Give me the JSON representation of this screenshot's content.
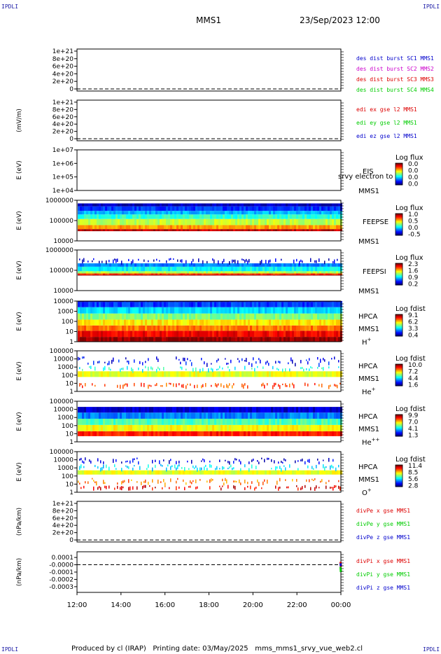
{
  "corners": {
    "tl": "IPDLI",
    "tr": "IPDLI",
    "bl": "IPDLI",
    "br": "IPDLI"
  },
  "header": {
    "spacecraft": "MMS1",
    "datetime": "23/Sep/2023 12:00"
  },
  "footer": {
    "produced": "Produced by cl (IRAP)",
    "printing": "Printing date: 03/May/2025",
    "file": "mms_mms1_srvy_vue_web2.cl"
  },
  "colors": {
    "black": "#000000",
    "blue": "#0000cc",
    "magenta": "#cc00cc",
    "red": "#dd0000",
    "green": "#00cc00"
  },
  "chart_data": [
    {
      "type": "line",
      "id": "des_dist",
      "ylabel": "",
      "ylim": [
        0,
        1e+21
      ],
      "yticks": [
        "1e+21",
        "8e+20",
        "6e+20",
        "4e+20",
        "2e+20",
        "0"
      ],
      "legend": [
        {
          "name": "des dist burst SC1 MMS1",
          "color": "#0000cc"
        },
        {
          "name": "des dist burst SC2 MMS2",
          "color": "#cc00cc"
        },
        {
          "name": "des dist burst SC3 MMS3",
          "color": "#dd0000"
        },
        {
          "name": "des dist burst SC4 MMS4",
          "color": "#00cc00"
        }
      ],
      "series": [],
      "zero_line": true
    },
    {
      "type": "line",
      "id": "edi",
      "ylabel": "(mV/m)",
      "ylim": [
        0,
        1e+21
      ],
      "yticks": [
        "1e+21",
        "8e+20",
        "6e+20",
        "4e+20",
        "2e+20",
        "0"
      ],
      "legend": [
        {
          "name": "edi ex gse l2 MMS1",
          "color": "#dd0000"
        },
        {
          "name": "edi ey gse l2 MMS1",
          "color": "#00cc00"
        },
        {
          "name": "edi ez gse l2 MMS1",
          "color": "#0000cc"
        }
      ],
      "series": [],
      "zero_line": true
    },
    {
      "type": "heatmap",
      "id": "eis",
      "ylabel": "E (eV)",
      "yscale": "log",
      "yticks": [
        "1e+07",
        "1e+06",
        "1e+05",
        "1e+04"
      ],
      "instrument": [
        "EIS",
        "MMS1"
      ],
      "overlay_text": "srvy electron to",
      "colorbar": {
        "label": "Log flux",
        "ticks": [
          "0.0",
          "0.0",
          "0.0",
          "0.0"
        ]
      },
      "spectrum": []
    },
    {
      "type": "heatmap",
      "id": "feeps_e",
      "ylabel": "E (eV)",
      "yscale": "log",
      "yticks": [
        "1000000",
        "100000",
        "10000"
      ],
      "instrument": [
        "FEEPSE",
        "MMS1"
      ],
      "colorbar": {
        "label": "Log flux",
        "ticks": [
          "1.0",
          "0.5",
          "0.0",
          "-0.5"
        ]
      },
      "spectrum": [
        {
          "e_min": 30000,
          "e_max": 38000,
          "level": 0.94
        },
        {
          "e_min": 38000,
          "e_max": 60000,
          "level": 0.72
        },
        {
          "e_min": 60000,
          "e_max": 120000,
          "level": 0.56
        },
        {
          "e_min": 120000,
          "e_max": 200000,
          "level": 0.42
        },
        {
          "e_min": 200000,
          "e_max": 300000,
          "level": 0.3
        },
        {
          "e_min": 300000,
          "e_max": 500000,
          "level": 0.18
        },
        {
          "e_min": 500000,
          "e_max": 700000,
          "level": 0.06
        }
      ]
    },
    {
      "type": "heatmap",
      "id": "feeps_i",
      "ylabel": "E (eV)",
      "yscale": "log",
      "yticks": [
        "1000000",
        "100000",
        "10000"
      ],
      "instrument": [
        "FEEPSI",
        "MMS1"
      ],
      "colorbar": {
        "label": "Log flux",
        "ticks": [
          "2.3",
          "1.6",
          "0.9",
          "0.2"
        ]
      },
      "spectrum": [
        {
          "e_min": 55000,
          "e_max": 60000,
          "level": 0.98
        },
        {
          "e_min": 60000,
          "e_max": 70000,
          "level": 0.82
        },
        {
          "e_min": 70000,
          "e_max": 90000,
          "level": 0.55
        },
        {
          "e_min": 90000,
          "e_max": 150000,
          "level": 0.38
        },
        {
          "e_min": 150000,
          "e_max": 220000,
          "level": 0.25
        },
        {
          "e_min": 220000,
          "e_max": 400000,
          "level": 0.08,
          "sparse": true
        }
      ]
    },
    {
      "type": "heatmap",
      "id": "hpca_h",
      "ylabel": "E (eV)",
      "yscale": "log",
      "yticks": [
        "10000",
        "1000",
        "100",
        "10",
        "1"
      ],
      "instrument": [
        "HPCA",
        "MMS1"
      ],
      "species": "H",
      "charge": "+",
      "colorbar": {
        "label": "Log fdist",
        "ticks": [
          "9.1",
          "6.2",
          "3.3",
          "0.4"
        ]
      },
      "spectrum": [
        {
          "e_min": 1,
          "e_max": 3,
          "level": 0.98
        },
        {
          "e_min": 3,
          "e_max": 12,
          "level": 0.88
        },
        {
          "e_min": 12,
          "e_max": 40,
          "level": 0.76
        },
        {
          "e_min": 40,
          "e_max": 150,
          "level": 0.64
        },
        {
          "e_min": 150,
          "e_max": 600,
          "level": 0.5
        },
        {
          "e_min": 600,
          "e_max": 2500,
          "level": 0.34
        },
        {
          "e_min": 2500,
          "e_max": 8000,
          "level": 0.18
        },
        {
          "e_min": 8000,
          "e_max": 25000,
          "level": 0.06
        }
      ]
    },
    {
      "type": "heatmap",
      "id": "hpca_he",
      "ylabel": "E (eV)",
      "yscale": "log",
      "yticks": [
        "100000",
        "10000",
        "1000",
        "100",
        "10",
        "1"
      ],
      "instrument": [
        "HPCA",
        "MMS1"
      ],
      "species": "He",
      "charge": "+",
      "colorbar": {
        "label": "Log fdist",
        "ticks": [
          "10.0",
          "7.2",
          "4.4",
          "1.6"
        ]
      },
      "spectrum": [
        {
          "e_min": 3,
          "e_max": 12,
          "level": 0.8,
          "sparse": true
        },
        {
          "e_min": 60,
          "e_max": 300,
          "level": 0.6
        },
        {
          "e_min": 300,
          "e_max": 1500,
          "level": 0.4,
          "sparse": true
        },
        {
          "e_min": 1500,
          "e_max": 20000,
          "level": 0.12,
          "sparse": true
        }
      ]
    },
    {
      "type": "heatmap",
      "id": "hpca_hepp",
      "ylabel": "E (eV)",
      "yscale": "log",
      "yticks": [
        "100000",
        "10000",
        "1000",
        "100",
        "10",
        "1"
      ],
      "instrument": [
        "HPCA",
        "MMS1"
      ],
      "species": "He",
      "charge": "++",
      "colorbar": {
        "label": "Log fdist",
        "ticks": [
          "9.9",
          "7.0",
          "4.1",
          "1.3"
        ]
      },
      "spectrum": [
        {
          "e_min": 5,
          "e_max": 20,
          "level": 0.85
        },
        {
          "e_min": 20,
          "e_max": 120,
          "level": 0.62
        },
        {
          "e_min": 120,
          "e_max": 700,
          "level": 0.45
        },
        {
          "e_min": 700,
          "e_max": 4000,
          "level": 0.25
        },
        {
          "e_min": 4000,
          "e_max": 20000,
          "level": 0.08
        }
      ]
    },
    {
      "type": "heatmap",
      "id": "hpca_o",
      "ylabel": "E (eV)",
      "yscale": "log",
      "yticks": [
        "100000",
        "10000",
        "1000",
        "100",
        "10",
        "1"
      ],
      "instrument": [
        "HPCA",
        "MMS1"
      ],
      "species": "O",
      "charge": "+",
      "colorbar": {
        "label": "Log fdist",
        "ticks": [
          "11.4",
          "8.5",
          "5.6",
          "2.8"
        ]
      },
      "spectrum": [
        {
          "e_min": 2,
          "e_max": 8,
          "level": 0.9,
          "sparse": true
        },
        {
          "e_min": 8,
          "e_max": 60,
          "level": 0.75,
          "sparse": true
        },
        {
          "e_min": 150,
          "e_max": 500,
          "level": 0.6
        },
        {
          "e_min": 500,
          "e_max": 3000,
          "level": 0.35,
          "sparse": true
        },
        {
          "e_min": 3000,
          "e_max": 20000,
          "level": 0.1,
          "sparse": true
        }
      ]
    },
    {
      "type": "line",
      "id": "divpe",
      "ylabel": "(nPa/km)",
      "ylim": [
        0,
        1e+21
      ],
      "yticks": [
        "1e+21",
        "8e+20",
        "6e+20",
        "4e+20",
        "2e+20",
        "0"
      ],
      "legend": [
        {
          "name": "divPe x gse MMS1",
          "color": "#dd0000"
        },
        {
          "name": "divPe y gse MMS1",
          "color": "#00cc00"
        },
        {
          "name": "divPe z gse MMS1",
          "color": "#0000cc"
        }
      ],
      "series": [],
      "zero_line": true
    },
    {
      "type": "line",
      "id": "divpi",
      "ylabel": "(nPa/km)",
      "ylim": [
        -0.00035,
        0.00015
      ],
      "yticks": [
        "0.0001",
        "-0.0000",
        "-0.0001",
        "-0.0002",
        "-0.0003"
      ],
      "legend": [
        {
          "name": "divPi x gse MMS1",
          "color": "#dd0000"
        },
        {
          "name": "divPi y gse MMS1",
          "color": "#00cc00"
        },
        {
          "name": "divPi z gse MMS1",
          "color": "#0000cc"
        }
      ],
      "series": [
        {
          "name": "divPi x gse MMS1",
          "color": "#dd0000",
          "points": [
            [
              "23:59",
              4e-05
            ],
            [
              "00:00",
              -3e-05
            ]
          ]
        },
        {
          "name": "divPi y gse MMS1",
          "color": "#00cc00",
          "points": [
            [
              "23:59",
              -3e-05
            ],
            [
              "00:00",
              -0.0001
            ]
          ]
        },
        {
          "name": "divPi z gse MMS1",
          "color": "#0000cc",
          "points": [
            [
              "23:59",
              2e-05
            ],
            [
              "00:00",
              -2e-05
            ]
          ]
        }
      ],
      "zero_line": true
    }
  ],
  "x_axis": {
    "ticks": [
      "12:00",
      "14:00",
      "16:00",
      "18:00",
      "20:00",
      "22:00",
      "00:00"
    ],
    "range_hours": [
      12,
      24
    ]
  }
}
